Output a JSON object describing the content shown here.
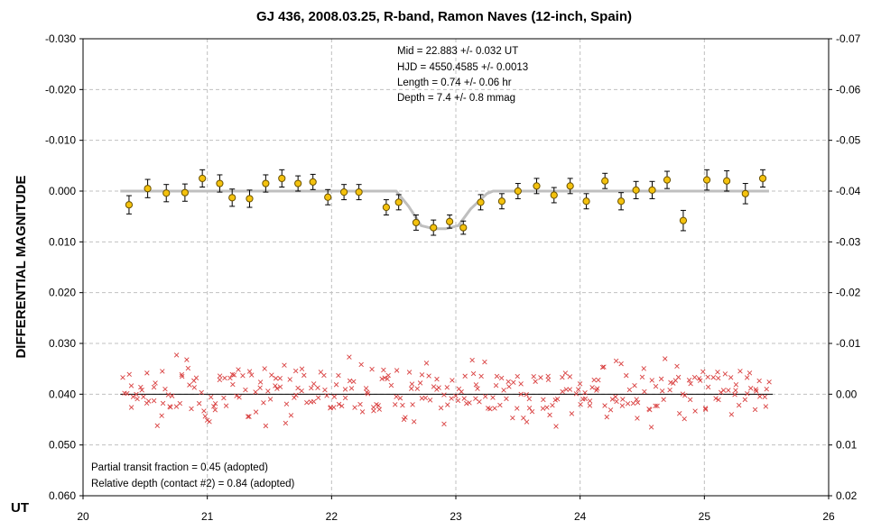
{
  "chart_data": {
    "type": "scatter",
    "title": "GJ 436, 2008.03.25, R-band, Ramon Naves (12-inch, Spain)",
    "xlabel": "UT",
    "ylabel": "DIFFERENTIAL MAGNITUDE",
    "xlim": [
      20,
      26
    ],
    "ylim": [
      -0.03,
      0.06
    ],
    "y_inverted": true,
    "y2lim": [
      -0.07,
      0.02
    ],
    "grid": true,
    "x_ticks": [
      "20",
      "21",
      "22",
      "23",
      "24",
      "25",
      "26"
    ],
    "y_ticks": [
      "-0.030",
      "-0.020",
      "-0.010",
      "0.000",
      "0.010",
      "0.020",
      "0.030",
      "0.040",
      "0.050",
      "0.060"
    ],
    "y2_ticks": [
      "-0.07",
      "-0.06",
      "-0.05",
      "-0.04",
      "-0.03",
      "-0.02",
      "-0.01",
      "0.00",
      "0.01",
      "0.02"
    ],
    "annotations_top": [
      "Mid  = 22.883 +/- 0.032 UT",
      "HJD = 4550.4585 +/- 0.0013",
      "Length = 0.74 +/- 0.06 hr",
      "Depth = 7.4 +/- 0.8 mmag"
    ],
    "annotations_bottom": [
      "Partial transit fraction = 0.45 (adopted)",
      "Relative depth (contact #2) = 0.84 (adopted)"
    ],
    "colors": {
      "binned_fill": "#f4c20d",
      "binned_edge": "#6b5200",
      "model": "#bfbfbf",
      "residual": "#d94040",
      "grid": "#c0c0c0"
    },
    "series": [
      {
        "x": [
          20.37,
          20.52,
          20.67,
          20.82,
          20.96,
          21.1,
          21.2,
          21.34,
          21.47,
          21.6,
          21.73,
          21.85,
          21.97,
          22.1,
          22.22,
          22.44,
          22.54,
          22.68,
          22.82,
          22.95,
          23.06,
          23.2,
          23.37,
          23.5,
          23.65,
          23.79,
          23.92,
          24.05,
          24.2,
          24.33,
          24.45,
          24.58,
          24.7,
          24.83,
          25.02,
          25.18,
          25.33,
          25.47
        ],
        "values": [
          0.0027,
          -0.0005,
          0.0004,
          0.0003,
          -0.0025,
          -0.0015,
          0.0013,
          0.0015,
          -0.0015,
          -0.0025,
          -0.0015,
          -0.0018,
          0.0012,
          0.0002,
          0.0002,
          0.0032,
          0.0022,
          0.0062,
          0.0072,
          0.006,
          0.0072,
          0.0022,
          0.002,
          0.0,
          -0.001,
          0.0008,
          -0.001,
          0.002,
          -0.002,
          0.002,
          -0.0002,
          -0.0002,
          -0.0022,
          0.0058,
          -0.0022,
          -0.002,
          0.0005,
          -0.0025
        ],
        "errors": [
          0.0018,
          0.0018,
          0.0017,
          0.0017,
          0.0017,
          0.0017,
          0.0017,
          0.0017,
          0.0017,
          0.0017,
          0.0015,
          0.0015,
          0.0015,
          0.0015,
          0.0015,
          0.0015,
          0.0015,
          0.0015,
          0.0015,
          0.0013,
          0.0013,
          0.0015,
          0.0015,
          0.0015,
          0.0015,
          0.0015,
          0.0015,
          0.0015,
          0.0015,
          0.0017,
          0.0017,
          0.0017,
          0.0017,
          0.002,
          0.002,
          0.002,
          0.002,
          0.0017
        ]
      },
      {
        "x": [
          20.3,
          20.53,
          22.52,
          22.62,
          22.72,
          22.82,
          22.92,
          23.02,
          23.12,
          23.25,
          23.3,
          25.52
        ],
        "values": [
          0.0,
          0.0,
          0.0,
          0.003,
          0.0068,
          0.0074,
          0.0074,
          0.0068,
          0.0035,
          0.0005,
          0.0,
          0.0
        ]
      },
      {
        "x": [
          20.3,
          25.55
        ],
        "values": [
          0.04,
          0.04
        ]
      }
    ]
  }
}
